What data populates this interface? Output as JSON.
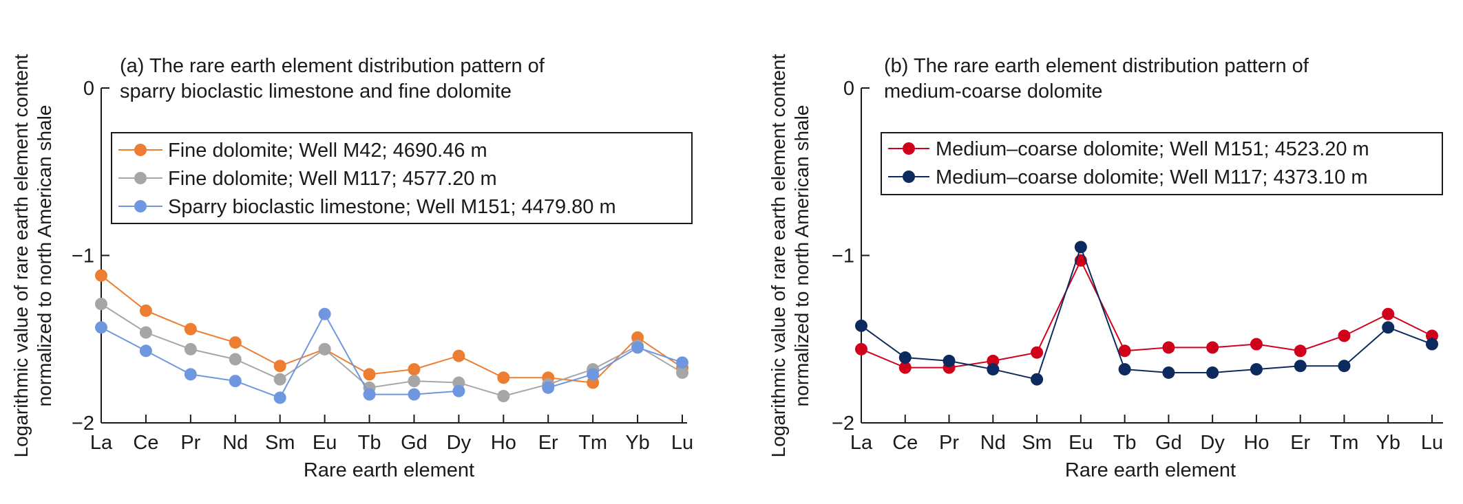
{
  "chart_data": [
    {
      "type": "line",
      "title": "(a) The rare earth element distribution pattern of sparry bioclastic limestone and fine dolomite",
      "title_lines": [
        "(a) The rare earth element distribution pattern of",
        "sparry bioclastic limestone and fine dolomite"
      ],
      "xlabel": "Rare earth element",
      "ylabel": "Logarithmic value of rare earth element content normalized to north American shale",
      "ylabel_lines": [
        "Logarithmic value of rare earth element content",
        "normalized to north American shale"
      ],
      "categories": [
        "La",
        "Ce",
        "Pr",
        "Nd",
        "Sm",
        "Eu",
        "Tb",
        "Gd",
        "Dy",
        "Ho",
        "Er",
        "Tm",
        "Yb",
        "Lu"
      ],
      "ylim": [
        -2,
        0
      ],
      "yticks": [
        -2,
        -1,
        0
      ],
      "ytick_labels": [
        "−2",
        "−1",
        "0"
      ],
      "legend_position": "upper-left",
      "series": [
        {
          "name": "Fine dolomite; Well M42; 4690.46 m",
          "color": "#ed7d31",
          "values": [
            -1.12,
            -1.33,
            -1.44,
            -1.52,
            -1.66,
            -1.56,
            -1.71,
            -1.68,
            -1.6,
            -1.73,
            -1.73,
            -1.76,
            -1.49,
            -1.67
          ]
        },
        {
          "name": "Fine dolomite; Well M117; 4577.20 m",
          "color": "#a6a6a6",
          "values": [
            -1.29,
            -1.46,
            -1.56,
            -1.62,
            -1.74,
            -1.56,
            -1.79,
            -1.75,
            -1.76,
            -1.84,
            -1.77,
            -1.68,
            -1.54,
            -1.7
          ]
        },
        {
          "name": "Sparry bioclastic limestone; Well M151; 4479.80 m",
          "color": "#6f97e0",
          "values": [
            -1.43,
            -1.57,
            -1.71,
            -1.75,
            -1.85,
            -1.35,
            -1.83,
            -1.83,
            -1.81,
            null,
            -1.79,
            -1.71,
            -1.55,
            -1.64
          ]
        }
      ]
    },
    {
      "type": "line",
      "title": "(b) The rare earth element distribution pattern of medium-coarse dolomite",
      "title_lines": [
        "(b) The rare earth element distribution pattern of",
        "medium-coarse dolomite"
      ],
      "xlabel": "Rare earth element",
      "ylabel": "Logarithmic value of rare earth element content normalized to north American shale",
      "ylabel_lines": [
        "Logarithmic value of rare earth element content",
        "normalized to north American shale"
      ],
      "categories": [
        "La",
        "Ce",
        "Pr",
        "Nd",
        "Sm",
        "Eu",
        "Tb",
        "Gd",
        "Dy",
        "Ho",
        "Er",
        "Tm",
        "Yb",
        "Lu"
      ],
      "ylim": [
        -2,
        0
      ],
      "yticks": [
        -2,
        -1,
        0
      ],
      "ytick_labels": [
        "−2",
        "−1",
        "0"
      ],
      "legend_position": "upper-left",
      "series": [
        {
          "name": "Medium–coarse dolomite; Well M151; 4523.20 m",
          "color": "#d0021b",
          "values": [
            -1.56,
            -1.67,
            -1.67,
            -1.63,
            -1.58,
            -1.03,
            -1.57,
            -1.55,
            -1.55,
            -1.53,
            -1.57,
            -1.48,
            -1.35,
            -1.48
          ]
        },
        {
          "name": "Medium–coarse dolomite; Well M117; 4373.10 m",
          "color": "#0d2a5e",
          "values": [
            -1.42,
            -1.61,
            -1.63,
            -1.68,
            -1.74,
            -0.95,
            -1.68,
            -1.7,
            -1.7,
            -1.68,
            -1.66,
            -1.66,
            -1.43,
            -1.53
          ]
        }
      ]
    }
  ]
}
